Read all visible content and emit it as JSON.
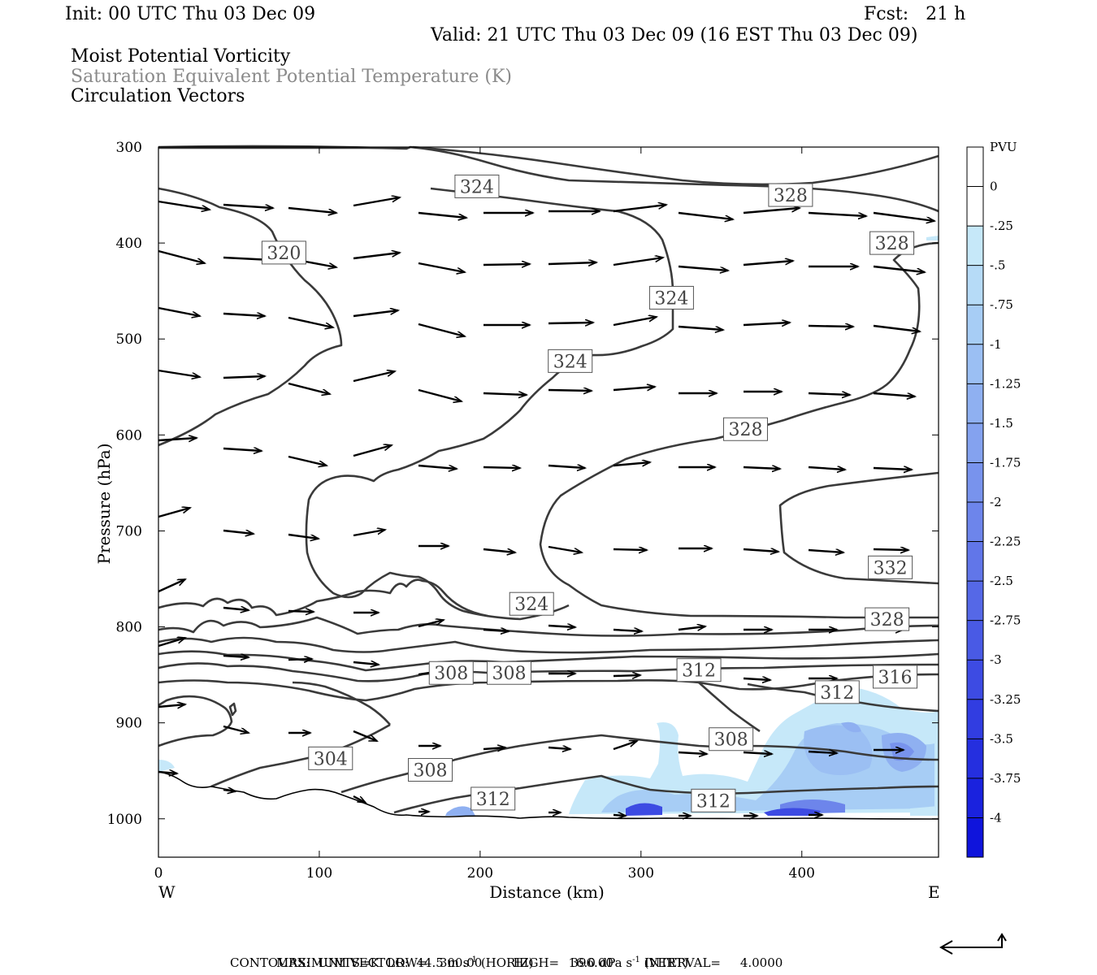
{
  "header": {
    "init": "Init: 00 UTC Thu 03 Dec 09",
    "fcst": "Fcst:   21 h",
    "valid": "Valid: 21 UTC Thu 03 Dec 09 (16 EST Thu 03 Dec 09)",
    "line1": "Moist Potential Vorticity",
    "line2": "Saturation Equivalent Potential Temperature (K)",
    "line3": "Circulation Vectors"
  },
  "chart_data": {
    "type": "cross-section",
    "xlabel": "Distance (km)",
    "ylabel": "Pressure (hPa)",
    "xlim": [
      0,
      485
    ],
    "ylim": [
      1040,
      300
    ],
    "x_ticks": [
      "0",
      "100",
      "200",
      "300",
      "400"
    ],
    "y_ticks": [
      "300",
      "400",
      "500",
      "600",
      "700",
      "800",
      "900",
      "1000"
    ],
    "west_label": "W",
    "east_label": "E",
    "colorbar": {
      "unit": "PVU",
      "labels": [
        "0",
        "-.25",
        "-.5",
        "-.75",
        "-1",
        "-1.25",
        "-1.5",
        "-1.75",
        "-2",
        "-2.25",
        "-2.5",
        "-2.75",
        "-3",
        "-3.25",
        "-3.5",
        "-3.75",
        "-4"
      ],
      "colors": [
        "#ffffff",
        "#ffffff",
        "#c6e8f9",
        "#b6dbf7",
        "#a7cdf5",
        "#9bbff3",
        "#8fb0f1",
        "#84a2ef",
        "#7893ed",
        "#6d85eb",
        "#6176e9",
        "#5568e7",
        "#495ae5",
        "#3d4be3",
        "#313de1",
        "#252fdf",
        "#1a22de",
        "#0f14dc"
      ],
      "fill_label": "Moist Potential Vorticity"
    },
    "contour_labels": [
      {
        "value": "324",
        "x": 198,
        "p": 341
      },
      {
        "value": "328",
        "x": 393,
        "p": 350
      },
      {
        "value": "320",
        "x": 78,
        "p": 410
      },
      {
        "value": "328",
        "x": 456,
        "p": 400
      },
      {
        "value": "324",
        "x": 319,
        "p": 457
      },
      {
        "value": "324",
        "x": 256,
        "p": 523
      },
      {
        "value": "328",
        "x": 365,
        "p": 594
      },
      {
        "value": "332",
        "x": 455,
        "p": 738
      },
      {
        "value": "324",
        "x": 232,
        "p": 776
      },
      {
        "value": "328",
        "x": 453,
        "p": 792
      },
      {
        "value": "308",
        "x": 182,
        "p": 848
      },
      {
        "value": "308",
        "x": 218,
        "p": 848
      },
      {
        "value": "312",
        "x": 336,
        "p": 845
      },
      {
        "value": "316",
        "x": 458,
        "p": 852
      },
      {
        "value": "312",
        "x": 422,
        "p": 868
      },
      {
        "value": "308",
        "x": 356,
        "p": 917
      },
      {
        "value": "304",
        "x": 107,
        "p": 937
      },
      {
        "value": "308",
        "x": 169,
        "p": 949
      },
      {
        "value": "312",
        "x": 208,
        "p": 979
      },
      {
        "value": "312",
        "x": 345,
        "p": 981
      }
    ],
    "contours": {
      "units": "K",
      "low": 300.0,
      "high": 396.0,
      "interval": 4.0
    },
    "vectors": {
      "max_horizontal": "44.5",
      "max_vertical": "16.0"
    }
  },
  "footer": {
    "max_label": "MAXIMUM VECTOR:",
    "horiz_value": "44.5",
    "horiz_unit": "m s",
    "horiz_tag": "(HORIZ)",
    "vert_value": "16.0",
    "vert_unit": "dPa s",
    "vert_tag": "(VERT)",
    "exp": "-1",
    "contours_line": "CONTOURS:  UNITS=K  LOW=   300.00        HIGH=   396.00        INTERVAL=     4.0000"
  }
}
